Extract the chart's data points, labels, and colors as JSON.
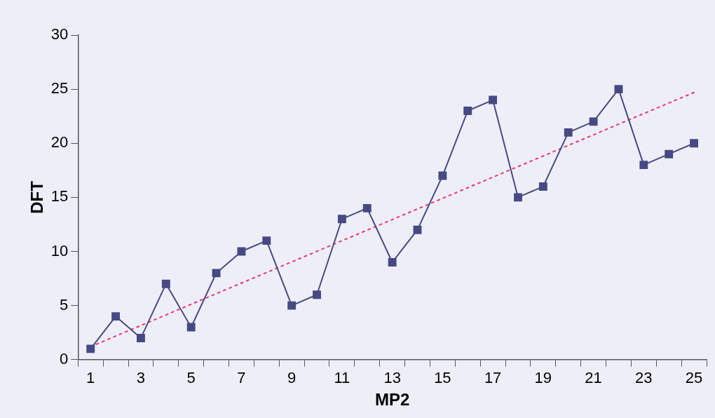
{
  "chart_data": {
    "type": "line",
    "xlabel": "MP2",
    "ylabel": "DFT",
    "x": [
      1,
      2,
      3,
      4,
      5,
      6,
      7,
      8,
      9,
      10,
      11,
      12,
      13,
      14,
      15,
      16,
      17,
      18,
      19,
      20,
      21,
      22,
      23,
      24,
      25
    ],
    "series": [
      {
        "color": "#474a82",
        "marker": "square",
        "line_style": "solid",
        "values": [
          1,
          4,
          2,
          7,
          3,
          8,
          10,
          11,
          5,
          6,
          13,
          14,
          9,
          12,
          17,
          23,
          24,
          15,
          16,
          21,
          22,
          25,
          18,
          19,
          20
        ]
      },
      {
        "type": "line",
        "color": "#e83a6e",
        "marker": "none",
        "line_style": "dotted",
        "x": [
          1,
          25
        ],
        "values": [
          1.2,
          24.7
        ]
      }
    ],
    "xlim": [
      0.5,
      25.5
    ],
    "xticks": [
      {
        "value": 0.5,
        "label": null
      },
      1,
      {
        "value": 1.5,
        "label": null
      },
      {
        "value": 2.5,
        "label": null
      },
      3,
      {
        "value": 3.5,
        "label": null
      },
      {
        "value": 4.5,
        "label": null
      },
      5,
      {
        "value": 5.5,
        "label": null
      },
      {
        "value": 6.5,
        "label": null
      },
      7,
      {
        "value": 7.5,
        "label": null
      },
      {
        "value": 8.5,
        "label": null
      },
      9,
      {
        "value": 9.5,
        "label": null
      },
      {
        "value": 10.5,
        "label": null
      },
      11,
      {
        "value": 11.5,
        "label": null
      },
      {
        "value": 12.5,
        "label": null
      },
      13,
      {
        "value": 13.5,
        "label": null
      },
      {
        "value": 14.5,
        "label": null
      },
      15,
      {
        "value": 15.5,
        "label": null
      },
      {
        "value": 16.5,
        "label": null
      },
      17,
      {
        "value": 17.5,
        "label": null
      },
      {
        "value": 18.5,
        "label": null
      },
      19,
      {
        "value": 19.5,
        "label": null
      },
      {
        "value": 20.5,
        "label": null
      },
      21,
      {
        "value": 21.5,
        "label": null
      },
      {
        "value": 22.5,
        "label": null
      },
      23,
      {
        "value": 23.5,
        "label": null
      },
      {
        "value": 24.5,
        "label": null
      },
      25,
      {
        "value": 25.5,
        "label": null
      }
    ],
    "ylim": [
      0,
      30
    ],
    "yticks": [
      0,
      5,
      10,
      15,
      20,
      25,
      30
    ],
    "grid": false,
    "legend": false
  }
}
